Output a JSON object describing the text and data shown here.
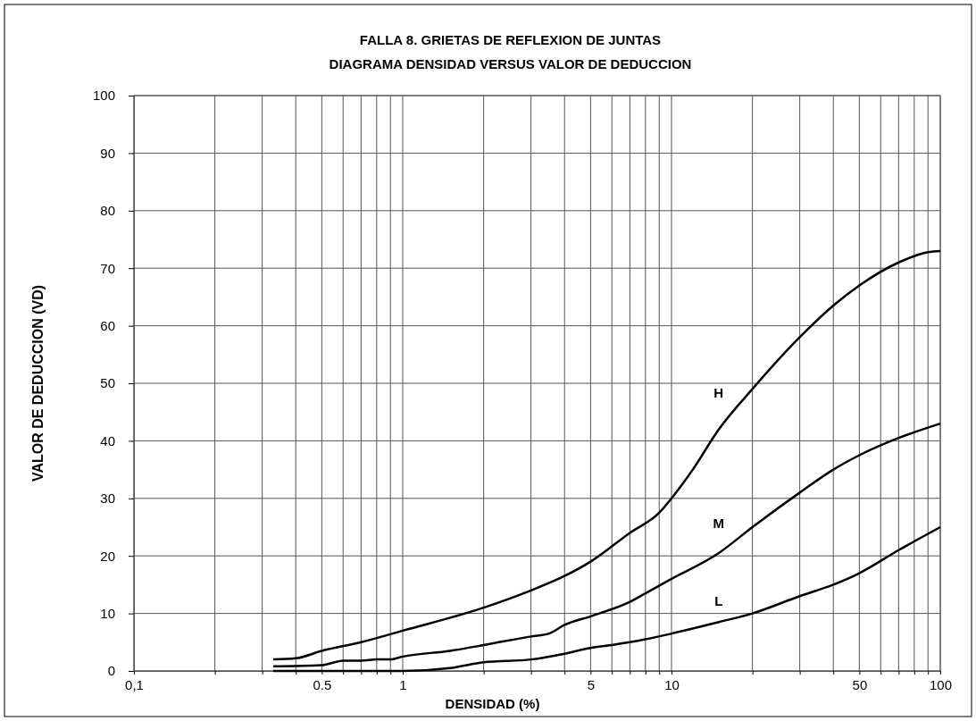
{
  "chart_data": {
    "type": "line",
    "title": "FALLA 8. GRIETAS DE REFLEXION DE JUNTAS",
    "subtitle": "DIAGRAMA DENSIDAD VERSUS VALOR DE DEDUCCION",
    "xlabel": "DENSIDAD (%)",
    "ylabel": "VALOR DE DEDUCCION (VD)",
    "log": "x",
    "grid": true,
    "marker": "none",
    "line_style": "solid",
    "xlim": [
      0.1,
      100
    ],
    "xticks": [
      {
        "value": 0.1,
        "label": "0,1"
      },
      {
        "value": 0.2,
        "label": null
      },
      {
        "value": 0.3,
        "label": null
      },
      {
        "value": 0.4,
        "label": null
      },
      0.5,
      {
        "value": 0.6,
        "label": null
      },
      {
        "value": 0.7,
        "label": null
      },
      {
        "value": 0.8,
        "label": null
      },
      {
        "value": 0.9,
        "label": null
      },
      1,
      {
        "value": 2,
        "label": null
      },
      {
        "value": 3,
        "label": null
      },
      {
        "value": 4,
        "label": null
      },
      5,
      {
        "value": 6,
        "label": null
      },
      {
        "value": 7,
        "label": null
      },
      {
        "value": 8,
        "label": null
      },
      {
        "value": 9,
        "label": null
      },
      10,
      {
        "value": 20,
        "label": null
      },
      {
        "value": 30,
        "label": null
      },
      {
        "value": 40,
        "label": null
      },
      50,
      {
        "value": 60,
        "label": null
      },
      {
        "value": 70,
        "label": null
      },
      {
        "value": 80,
        "label": null
      },
      {
        "value": 90,
        "label": null
      },
      100
    ],
    "ylim": [
      0,
      100
    ],
    "yticks": [
      0,
      10,
      20,
      30,
      40,
      50,
      60,
      70,
      80,
      90,
      100
    ],
    "series": [
      {
        "name": "H",
        "color": "#000000",
        "x": [
          0.33,
          0.4,
          0.5,
          0.7,
          1,
          2,
          3,
          4,
          5,
          7,
          9,
          10,
          12,
          15,
          20,
          30,
          40,
          50,
          70,
          90,
          100
        ],
        "values": [
          2,
          2.2,
          3.5,
          5,
          7,
          11,
          14,
          16.5,
          19,
          24,
          27.5,
          30,
          35,
          42,
          49,
          58,
          63.5,
          67,
          71,
          72.8,
          73
        ]
      },
      {
        "name": "M",
        "color": "#000000",
        "x": [
          0.33,
          0.5,
          0.6,
          0.7,
          0.8,
          0.9,
          1,
          1.5,
          2,
          3,
          3.5,
          4,
          5,
          7,
          8,
          10,
          15,
          20,
          30,
          40,
          50,
          70,
          100
        ],
        "values": [
          0.8,
          1,
          1.8,
          1.8,
          2,
          2,
          2.5,
          3.5,
          4.5,
          6,
          6.5,
          8,
          9.5,
          12,
          13.5,
          16,
          20.5,
          25,
          31,
          35,
          37.5,
          40.5,
          43
        ]
      },
      {
        "name": "L",
        "color": "#000000",
        "x": [
          0.33,
          1,
          1.5,
          2,
          3,
          4,
          5,
          6,
          8,
          10,
          15,
          20,
          30,
          40,
          50,
          70,
          100
        ],
        "values": [
          0,
          0,
          0.5,
          1.5,
          2,
          3,
          4,
          4.5,
          5.5,
          6.5,
          8.5,
          10,
          13,
          15,
          17,
          21,
          25
        ]
      }
    ]
  }
}
